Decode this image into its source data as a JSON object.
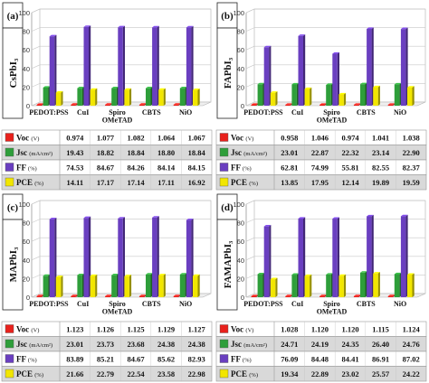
{
  "colors": {
    "voc": "#e8211c",
    "jsc": "#2e9e3a",
    "ff": "#6a3fc0",
    "pce": "#f2e600",
    "table_odd": "#ffffff",
    "table_even": "#d9d9d9"
  },
  "row_labels": [
    {
      "name": "Voc",
      "unit": "(V)"
    },
    {
      "name": "Jsc",
      "unit": "(mA/cm²)"
    },
    {
      "name": "FF",
      "unit": "(%)"
    },
    {
      "name": "PCE",
      "unit": "(%)"
    }
  ],
  "chart_data": [
    {
      "type": "bar",
      "panel_label": "(a)",
      "material": "CsPbI₃",
      "categories": [
        "PEDOT:PSS",
        "CuI",
        "Spiro OMeTAD",
        "CBTS",
        "NiO"
      ],
      "ylim": [
        0,
        100
      ],
      "yticks": [
        0,
        20,
        40,
        60,
        80,
        100
      ],
      "series": [
        {
          "name": "Voc",
          "values": [
            0.974,
            1.077,
            1.082,
            1.064,
            1.067
          ]
        },
        {
          "name": "Jsc",
          "values": [
            19.43,
            18.82,
            18.84,
            18.8,
            18.84
          ]
        },
        {
          "name": "FF",
          "values": [
            74.53,
            84.67,
            84.26,
            84.14,
            84.15
          ]
        },
        {
          "name": "PCE",
          "values": [
            14.11,
            17.17,
            17.14,
            17.11,
            16.92
          ]
        }
      ],
      "table": [
        [
          "0.974",
          "1.077",
          "1.082",
          "1.064",
          "1.067"
        ],
        [
          "19.43",
          "18.82",
          "18.84",
          "18.80",
          "18.84"
        ],
        [
          "74.53",
          "84.67",
          "84.26",
          "84.14",
          "84.15"
        ],
        [
          "14.11",
          "17.17",
          "17.14",
          "17.11",
          "16.92"
        ]
      ]
    },
    {
      "type": "bar",
      "panel_label": "(b)",
      "material": "FAPbI₃",
      "categories": [
        "PEDOT:PSS",
        "CuI",
        "Spiro OMeTAD",
        "CBTS",
        "NiO"
      ],
      "ylim": [
        0,
        100
      ],
      "yticks": [
        0,
        20,
        40,
        60,
        80,
        100
      ],
      "series": [
        {
          "name": "Voc",
          "values": [
            0.958,
            1.046,
            0.974,
            1.041,
            1.038
          ]
        },
        {
          "name": "Jsc",
          "values": [
            23.01,
            22.87,
            22.32,
            23.14,
            22.9
          ]
        },
        {
          "name": "FF",
          "values": [
            62.81,
            74.99,
            55.81,
            82.55,
            82.37
          ]
        },
        {
          "name": "PCE",
          "values": [
            13.85,
            17.95,
            12.14,
            19.89,
            19.59
          ]
        }
      ],
      "table": [
        [
          "0.958",
          "1.046",
          "0.974",
          "1.041",
          "1.038"
        ],
        [
          "23.01",
          "22.87",
          "22.32",
          "23.14",
          "22.90"
        ],
        [
          "62.81",
          "74.99",
          "55.81",
          "82.55",
          "82.37"
        ],
        [
          "13.85",
          "17.95",
          "12.14",
          "19.89",
          "19.59"
        ]
      ]
    },
    {
      "type": "bar",
      "panel_label": "(c)",
      "material": "MAPbI₃",
      "categories": [
        "PEDOT:PSS",
        "CuI",
        "Spiro OMeTAD",
        "CBTS",
        "NiO"
      ],
      "ylim": [
        0,
        100
      ],
      "yticks": [
        0,
        20,
        40,
        60,
        80,
        100
      ],
      "series": [
        {
          "name": "Voc",
          "values": [
            1.123,
            1.126,
            1.125,
            1.129,
            1.127
          ]
        },
        {
          "name": "Jsc",
          "values": [
            23.01,
            23.73,
            23.68,
            24.38,
            24.38
          ]
        },
        {
          "name": "FF",
          "values": [
            83.89,
            85.21,
            84.67,
            85.62,
            82.93
          ]
        },
        {
          "name": "PCE",
          "values": [
            21.66,
            22.79,
            22.54,
            23.58,
            22.98
          ]
        }
      ],
      "table": [
        [
          "1.123",
          "1.126",
          "1.125",
          "1.129",
          "1.127"
        ],
        [
          "23.01",
          "23.73",
          "23.68",
          "24.38",
          "24.38"
        ],
        [
          "83.89",
          "85.21",
          "84.67",
          "85.62",
          "82.93"
        ],
        [
          "21.66",
          "22.79",
          "22.54",
          "23.58",
          "22.98"
        ]
      ]
    },
    {
      "type": "bar",
      "panel_label": "(d)",
      "material": "FAMAPbI₃",
      "categories": [
        "PEDOT:PSS",
        "CuI",
        "Spiro OMeTAD",
        "CBTS",
        "NiO"
      ],
      "ylim": [
        0,
        100
      ],
      "yticks": [
        0,
        20,
        40,
        60,
        80,
        100
      ],
      "series": [
        {
          "name": "Voc",
          "values": [
            1.028,
            1.12,
            1.12,
            1.115,
            1.124
          ]
        },
        {
          "name": "Jsc",
          "values": [
            24.71,
            24.19,
            24.35,
            26.4,
            24.76
          ]
        },
        {
          "name": "FF",
          "values": [
            76.09,
            84.48,
            84.41,
            86.91,
            87.02
          ]
        },
        {
          "name": "PCE",
          "values": [
            19.34,
            22.89,
            23.02,
            25.57,
            24.22
          ]
        }
      ],
      "table": [
        [
          "1.028",
          "1.120",
          "1.120",
          "1.115",
          "1.124"
        ],
        [
          "24.71",
          "24.19",
          "24.35",
          "26.40",
          "24.76"
        ],
        [
          "76.09",
          "84.48",
          "84.41",
          "86.91",
          "87.02"
        ],
        [
          "19.34",
          "22.89",
          "23.02",
          "25.57",
          "24.22"
        ]
      ]
    }
  ]
}
